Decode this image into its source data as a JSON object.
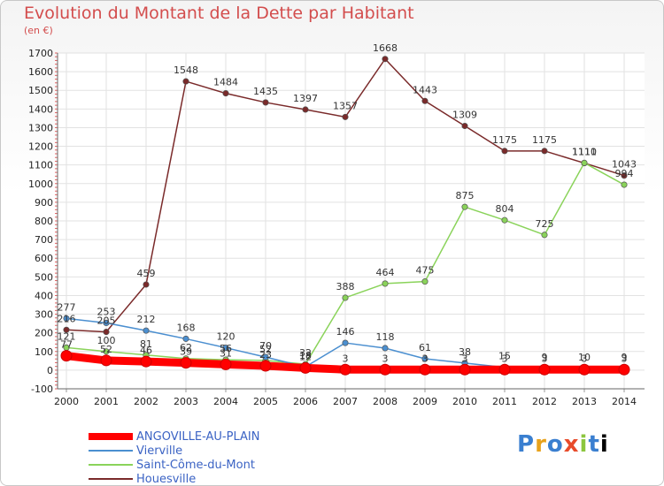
{
  "header": {
    "title": "Evolution du Montant de la Dette par Habitant",
    "subtitle": "(en €)"
  },
  "logo": {
    "text": "Proxiti"
  },
  "chart_data": {
    "type": "line",
    "x": [
      "2000",
      "2001",
      "2002",
      "2003",
      "2004",
      "2005",
      "2006",
      "2007",
      "2008",
      "2009",
      "2010",
      "2011",
      "2012",
      "2013",
      "2014"
    ],
    "ylim": [
      -100,
      1700
    ],
    "yticks": [
      -100,
      0,
      100,
      200,
      300,
      400,
      500,
      600,
      700,
      800,
      900,
      1000,
      1100,
      1200,
      1300,
      1400,
      1500,
      1600,
      1700
    ],
    "grid": true,
    "legend_position": "bottom-left",
    "series": [
      {
        "name": "ANGOVILLE-AU-PLAIN",
        "color": "#ff0000",
        "values": [
          77,
          52,
          46,
          39,
          31,
          23,
          12,
          3,
          3,
          3,
          3,
          3,
          3,
          3,
          3
        ]
      },
      {
        "name": "Vierville",
        "color": "#4b8fd0",
        "values": [
          277,
          253,
          212,
          168,
          120,
          70,
          18,
          146,
          118,
          61,
          38,
          15,
          9,
          10,
          9
        ]
      },
      {
        "name": "Saint-Côme-du-Mont",
        "color": "#8ad35a",
        "values": [
          121,
          100,
          81,
          62,
          56,
          52,
          32,
          388,
          464,
          475,
          875,
          804,
          725,
          1111,
          994
        ]
      },
      {
        "name": "Houesville",
        "color": "#7a2a2a",
        "values": [
          216,
          205,
          459,
          1548,
          1484,
          1435,
          1397,
          1357,
          1668,
          1443,
          1309,
          1175,
          1175,
          1110,
          1043
        ]
      }
    ]
  }
}
